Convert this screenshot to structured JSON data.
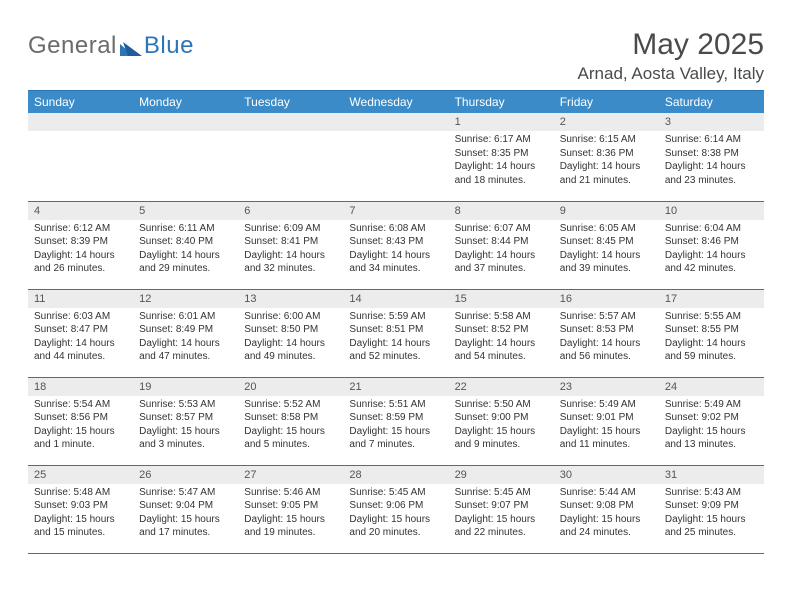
{
  "brand": {
    "textGray": "General",
    "textBlue": "Blue"
  },
  "title": "May 2025",
  "location": "Arnad, Aosta Valley, Italy",
  "colors": {
    "header_bg": "#3b8bc9",
    "header_border": "#2e75b6",
    "daynum_bg": "#ececec",
    "text_dark": "#4a4a4a",
    "text_body": "#333333",
    "logo_gray": "#6b6b6b",
    "logo_blue": "#2e75b6"
  },
  "weekday_labels": [
    "Sunday",
    "Monday",
    "Tuesday",
    "Wednesday",
    "Thursday",
    "Friday",
    "Saturday"
  ],
  "weeks": [
    [
      {
        "n": "",
        "sr": "",
        "ss": "",
        "dl": ""
      },
      {
        "n": "",
        "sr": "",
        "ss": "",
        "dl": ""
      },
      {
        "n": "",
        "sr": "",
        "ss": "",
        "dl": ""
      },
      {
        "n": "",
        "sr": "",
        "ss": "",
        "dl": ""
      },
      {
        "n": "1",
        "sr": "Sunrise: 6:17 AM",
        "ss": "Sunset: 8:35 PM",
        "dl": "Daylight: 14 hours and 18 minutes."
      },
      {
        "n": "2",
        "sr": "Sunrise: 6:15 AM",
        "ss": "Sunset: 8:36 PM",
        "dl": "Daylight: 14 hours and 21 minutes."
      },
      {
        "n": "3",
        "sr": "Sunrise: 6:14 AM",
        "ss": "Sunset: 8:38 PM",
        "dl": "Daylight: 14 hours and 23 minutes."
      }
    ],
    [
      {
        "n": "4",
        "sr": "Sunrise: 6:12 AM",
        "ss": "Sunset: 8:39 PM",
        "dl": "Daylight: 14 hours and 26 minutes."
      },
      {
        "n": "5",
        "sr": "Sunrise: 6:11 AM",
        "ss": "Sunset: 8:40 PM",
        "dl": "Daylight: 14 hours and 29 minutes."
      },
      {
        "n": "6",
        "sr": "Sunrise: 6:09 AM",
        "ss": "Sunset: 8:41 PM",
        "dl": "Daylight: 14 hours and 32 minutes."
      },
      {
        "n": "7",
        "sr": "Sunrise: 6:08 AM",
        "ss": "Sunset: 8:43 PM",
        "dl": "Daylight: 14 hours and 34 minutes."
      },
      {
        "n": "8",
        "sr": "Sunrise: 6:07 AM",
        "ss": "Sunset: 8:44 PM",
        "dl": "Daylight: 14 hours and 37 minutes."
      },
      {
        "n": "9",
        "sr": "Sunrise: 6:05 AM",
        "ss": "Sunset: 8:45 PM",
        "dl": "Daylight: 14 hours and 39 minutes."
      },
      {
        "n": "10",
        "sr": "Sunrise: 6:04 AM",
        "ss": "Sunset: 8:46 PM",
        "dl": "Daylight: 14 hours and 42 minutes."
      }
    ],
    [
      {
        "n": "11",
        "sr": "Sunrise: 6:03 AM",
        "ss": "Sunset: 8:47 PM",
        "dl": "Daylight: 14 hours and 44 minutes."
      },
      {
        "n": "12",
        "sr": "Sunrise: 6:01 AM",
        "ss": "Sunset: 8:49 PM",
        "dl": "Daylight: 14 hours and 47 minutes."
      },
      {
        "n": "13",
        "sr": "Sunrise: 6:00 AM",
        "ss": "Sunset: 8:50 PM",
        "dl": "Daylight: 14 hours and 49 minutes."
      },
      {
        "n": "14",
        "sr": "Sunrise: 5:59 AM",
        "ss": "Sunset: 8:51 PM",
        "dl": "Daylight: 14 hours and 52 minutes."
      },
      {
        "n": "15",
        "sr": "Sunrise: 5:58 AM",
        "ss": "Sunset: 8:52 PM",
        "dl": "Daylight: 14 hours and 54 minutes."
      },
      {
        "n": "16",
        "sr": "Sunrise: 5:57 AM",
        "ss": "Sunset: 8:53 PM",
        "dl": "Daylight: 14 hours and 56 minutes."
      },
      {
        "n": "17",
        "sr": "Sunrise: 5:55 AM",
        "ss": "Sunset: 8:55 PM",
        "dl": "Daylight: 14 hours and 59 minutes."
      }
    ],
    [
      {
        "n": "18",
        "sr": "Sunrise: 5:54 AM",
        "ss": "Sunset: 8:56 PM",
        "dl": "Daylight: 15 hours and 1 minute."
      },
      {
        "n": "19",
        "sr": "Sunrise: 5:53 AM",
        "ss": "Sunset: 8:57 PM",
        "dl": "Daylight: 15 hours and 3 minutes."
      },
      {
        "n": "20",
        "sr": "Sunrise: 5:52 AM",
        "ss": "Sunset: 8:58 PM",
        "dl": "Daylight: 15 hours and 5 minutes."
      },
      {
        "n": "21",
        "sr": "Sunrise: 5:51 AM",
        "ss": "Sunset: 8:59 PM",
        "dl": "Daylight: 15 hours and 7 minutes."
      },
      {
        "n": "22",
        "sr": "Sunrise: 5:50 AM",
        "ss": "Sunset: 9:00 PM",
        "dl": "Daylight: 15 hours and 9 minutes."
      },
      {
        "n": "23",
        "sr": "Sunrise: 5:49 AM",
        "ss": "Sunset: 9:01 PM",
        "dl": "Daylight: 15 hours and 11 minutes."
      },
      {
        "n": "24",
        "sr": "Sunrise: 5:49 AM",
        "ss": "Sunset: 9:02 PM",
        "dl": "Daylight: 15 hours and 13 minutes."
      }
    ],
    [
      {
        "n": "25",
        "sr": "Sunrise: 5:48 AM",
        "ss": "Sunset: 9:03 PM",
        "dl": "Daylight: 15 hours and 15 minutes."
      },
      {
        "n": "26",
        "sr": "Sunrise: 5:47 AM",
        "ss": "Sunset: 9:04 PM",
        "dl": "Daylight: 15 hours and 17 minutes."
      },
      {
        "n": "27",
        "sr": "Sunrise: 5:46 AM",
        "ss": "Sunset: 9:05 PM",
        "dl": "Daylight: 15 hours and 19 minutes."
      },
      {
        "n": "28",
        "sr": "Sunrise: 5:45 AM",
        "ss": "Sunset: 9:06 PM",
        "dl": "Daylight: 15 hours and 20 minutes."
      },
      {
        "n": "29",
        "sr": "Sunrise: 5:45 AM",
        "ss": "Sunset: 9:07 PM",
        "dl": "Daylight: 15 hours and 22 minutes."
      },
      {
        "n": "30",
        "sr": "Sunrise: 5:44 AM",
        "ss": "Sunset: 9:08 PM",
        "dl": "Daylight: 15 hours and 24 minutes."
      },
      {
        "n": "31",
        "sr": "Sunrise: 5:43 AM",
        "ss": "Sunset: 9:09 PM",
        "dl": "Daylight: 15 hours and 25 minutes."
      }
    ]
  ]
}
